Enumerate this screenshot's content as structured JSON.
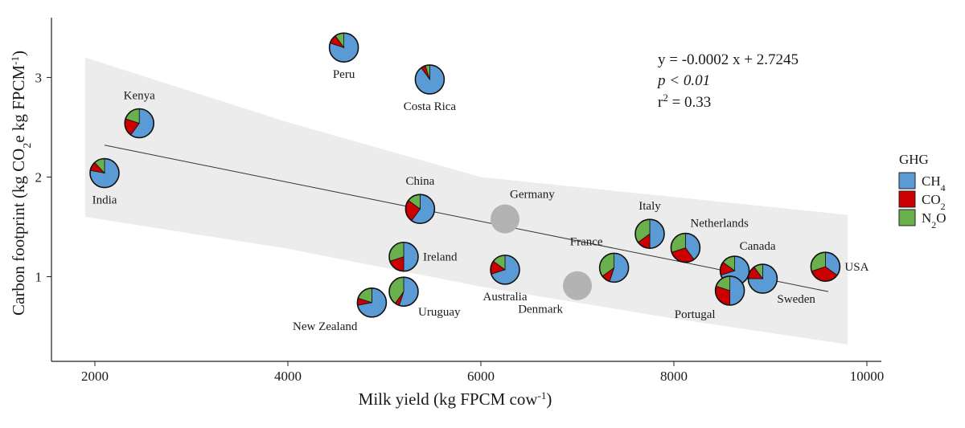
{
  "chart_data": {
    "type": "scatter",
    "xlabel": "Milk yield (kg FPCM cow",
    "xlabel_sup": "-1",
    "xlabel_end": ")",
    "ylabel": "Carbon footprint (kg CO",
    "ylabel_sub": "2",
    "ylabel_mid": "e kg FPCM",
    "ylabel_sup": "-1",
    "ylabel_end": ")",
    "xlim": [
      1550,
      10150
    ],
    "ylim": [
      0.15,
      3.6
    ],
    "x_ticks": [
      2000,
      4000,
      6000,
      8000,
      10000
    ],
    "x_tick_labels": [
      "2000",
      "4000",
      "6000",
      "8000",
      "10000"
    ],
    "y_ticks": [
      1,
      2,
      3
    ],
    "y_tick_labels": [
      "1",
      "2",
      "3"
    ],
    "grid": false,
    "regression": {
      "equation": "y = -0.0002 x  + 2.7245",
      "p_value": "p < 0.01",
      "r2_prefix": "r",
      "r2_sup": "2",
      "r2_suffix": " = 0.33",
      "line": {
        "x": [
          2100,
          9600
        ],
        "y": [
          2.32,
          0.85
        ]
      },
      "band_upper": [
        [
          1900,
          3.2
        ],
        [
          4000,
          2.55
        ],
        [
          6000,
          2.0
        ],
        [
          8000,
          1.8
        ],
        [
          9800,
          1.62
        ]
      ],
      "band_lower": [
        [
          9800,
          0.32
        ],
        [
          8000,
          0.58
        ],
        [
          6000,
          0.9
        ],
        [
          4000,
          1.28
        ],
        [
          1900,
          1.6
        ]
      ]
    },
    "legend": {
      "title": "GHG",
      "placement": "right",
      "entries": [
        {
          "name": "CH",
          "sub": "4",
          "color": "#5b9bd5"
        },
        {
          "name": "CO",
          "sub": "2",
          "color": "#cc0000"
        },
        {
          "name": "N",
          "sub": "2",
          "suffix": "O",
          "color": "#6ab04c"
        }
      ]
    },
    "colors": {
      "ch4": "#5b9bd5",
      "co2": "#cc0000",
      "n2o": "#6ab04c",
      "no_data": "#b3b3b3",
      "band": "#ececec"
    },
    "points": [
      {
        "country": "India",
        "x": 2100,
        "y": 2.04,
        "ch4": 0.78,
        "co2": 0.1,
        "n2o": 0.12,
        "label_pos": "below"
      },
      {
        "country": "Kenya",
        "x": 2460,
        "y": 2.54,
        "ch4": 0.6,
        "co2": 0.2,
        "n2o": 0.2,
        "label_pos": "above"
      },
      {
        "country": "Peru",
        "x": 4580,
        "y": 3.3,
        "ch4": 0.8,
        "co2": 0.1,
        "n2o": 0.1,
        "label_pos": "below"
      },
      {
        "country": "Costa Rica",
        "x": 5470,
        "y": 2.98,
        "ch4": 0.9,
        "co2": 0.05,
        "n2o": 0.05,
        "label_pos": "below"
      },
      {
        "country": "China",
        "x": 5370,
        "y": 1.68,
        "ch4": 0.6,
        "co2": 0.25,
        "n2o": 0.15,
        "label_pos": "above"
      },
      {
        "country": "Ireland",
        "x": 5200,
        "y": 1.2,
        "ch4": 0.5,
        "co2": 0.2,
        "n2o": 0.3,
        "label_pos": "right"
      },
      {
        "country": "New Zealand",
        "x": 4870,
        "y": 0.74,
        "ch4": 0.72,
        "co2": 0.08,
        "n2o": 0.2,
        "label_pos": "below-left"
      },
      {
        "country": "Uruguay",
        "x": 5200,
        "y": 0.85,
        "ch4": 0.55,
        "co2": 0.05,
        "n2o": 0.4,
        "label_pos": "below-right"
      },
      {
        "country": "Australia",
        "x": 6250,
        "y": 1.07,
        "ch4": 0.7,
        "co2": 0.15,
        "n2o": 0.15,
        "label_pos": "below"
      },
      {
        "country": "Germany",
        "x": 6250,
        "y": 1.58,
        "no_data": true,
        "label_pos": "above-right"
      },
      {
        "country": "Denmark",
        "x": 7000,
        "y": 0.91,
        "no_data": true,
        "label_pos": "below-left"
      },
      {
        "country": "France",
        "x": 7380,
        "y": 1.09,
        "ch4": 0.55,
        "co2": 0.1,
        "n2o": 0.35,
        "label_pos": "above-left"
      },
      {
        "country": "Italy",
        "x": 7750,
        "y": 1.43,
        "ch4": 0.5,
        "co2": 0.15,
        "n2o": 0.35,
        "label_pos": "above"
      },
      {
        "country": "Netherlands",
        "x": 8120,
        "y": 1.29,
        "ch4": 0.4,
        "co2": 0.3,
        "n2o": 0.3,
        "label_pos": "above-right"
      },
      {
        "country": "Canada",
        "x": 8630,
        "y": 1.06,
        "ch4": 0.7,
        "co2": 0.15,
        "n2o": 0.15,
        "label_pos": "above-right"
      },
      {
        "country": "Portugal",
        "x": 8580,
        "y": 0.86,
        "ch4": 0.5,
        "co2": 0.3,
        "n2o": 0.2,
        "label_pos": "below-left"
      },
      {
        "country": "Sweden",
        "x": 8920,
        "y": 0.98,
        "ch4": 0.75,
        "co2": 0.15,
        "n2o": 0.1,
        "label_pos": "below-right"
      },
      {
        "country": "USA",
        "x": 9570,
        "y": 1.1,
        "ch4": 0.35,
        "co2": 0.35,
        "n2o": 0.3,
        "label_pos": "right"
      }
    ]
  }
}
